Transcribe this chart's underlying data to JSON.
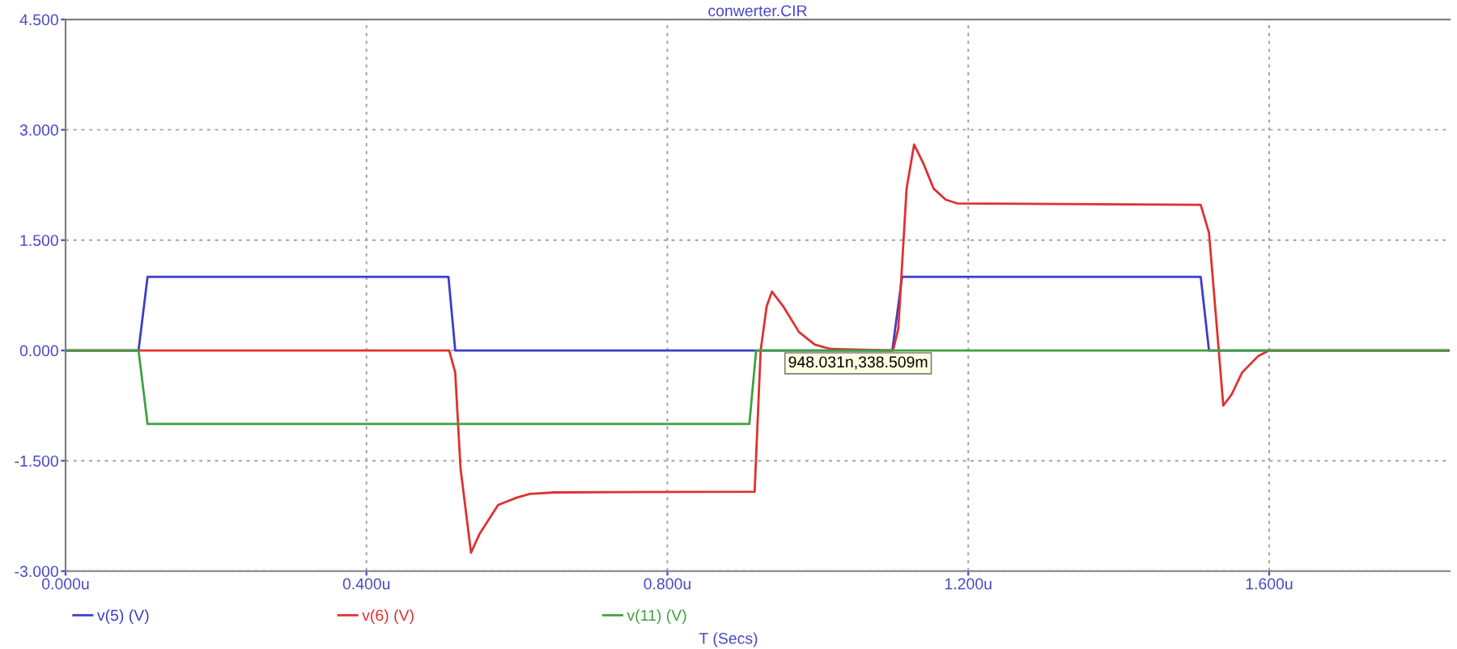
{
  "chart_data": {
    "type": "line",
    "title": "conwerter.CIR",
    "xlabel": "T (Secs)",
    "xlim": [
      0,
      1.84
    ],
    "ylim": [
      -3,
      4.5
    ],
    "xticks": [
      {
        "value": 0,
        "label": "0.000u"
      },
      {
        "value": 0.4,
        "label": "0.400u"
      },
      {
        "value": 0.8,
        "label": "0.800u"
      },
      {
        "value": 1.2,
        "label": "1.200u"
      },
      {
        "value": 1.6,
        "label": "1.600u"
      }
    ],
    "yticks": [
      {
        "value": -3,
        "label": "-3.000"
      },
      {
        "value": -1.5,
        "label": "-1.500"
      },
      {
        "value": 0,
        "label": "0.000"
      },
      {
        "value": 1.5,
        "label": "1.500"
      },
      {
        "value": 3,
        "label": "3.000"
      },
      {
        "value": 4.5,
        "label": "4.500"
      }
    ],
    "grid": true,
    "legend": "bottom",
    "marker": "none",
    "line_style": "solid",
    "annotations": [
      "948.031n,338.509m"
    ],
    "series": [
      {
        "name": "v(5) (V)",
        "color": "#3c3cc8",
        "x": [
          0,
          0.097,
          0.109,
          0.509,
          0.518,
          1.099,
          1.112,
          1.509,
          1.52,
          1.84
        ],
        "values": [
          0,
          0,
          1.0,
          1.0,
          0,
          0,
          1.0,
          1.0,
          0,
          0
        ]
      },
      {
        "name": "v(6) (V)",
        "color": "#e03030",
        "x": [
          0,
          0.51,
          0.518,
          0.525,
          0.539,
          0.55,
          0.575,
          0.6,
          0.617,
          0.65,
          0.916,
          0.924,
          0.932,
          0.939,
          0.954,
          0.975,
          0.996,
          1.017,
          1.1,
          1.107,
          1.118,
          1.128,
          1.14,
          1.154,
          1.17,
          1.185,
          1.509,
          1.52,
          1.533,
          1.539,
          1.55,
          1.564,
          1.585,
          1.6,
          1.84
        ],
        "values": [
          0,
          0,
          -0.3,
          -1.6,
          -2.75,
          -2.5,
          -2.1,
          -2.0,
          -1.95,
          -1.93,
          -1.92,
          0,
          0.6,
          0.8,
          0.6,
          0.25,
          0.08,
          0.02,
          0,
          0.3,
          2.2,
          2.8,
          2.55,
          2.2,
          2.05,
          2.0,
          1.98,
          1.6,
          0,
          -0.75,
          -0.6,
          -0.3,
          -0.08,
          0,
          0
        ]
      },
      {
        "name": "v(11) (V)",
        "color": "#40a040",
        "x": [
          0,
          0.097,
          0.109,
          0.909,
          0.918,
          1.84
        ],
        "values": [
          0,
          0,
          -1.0,
          -1.0,
          0,
          0
        ]
      }
    ]
  }
}
